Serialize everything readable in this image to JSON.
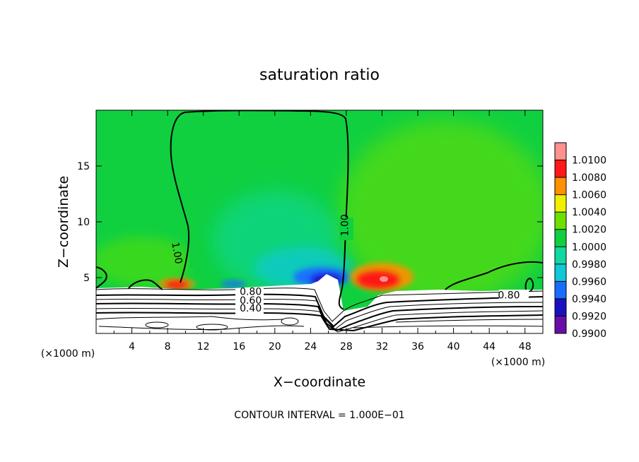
{
  "chart_data": {
    "type": "heatmap",
    "title": "saturation ratio",
    "xlabel": "X−coordinate",
    "ylabel": "Z−coordinate",
    "x_unit": "(×1000 m)",
    "xlim": [
      0,
      50
    ],
    "ylim": [
      0,
      20
    ],
    "x_ticks": [
      4,
      8,
      12,
      16,
      20,
      24,
      28,
      32,
      36,
      40,
      44,
      48
    ],
    "x_tick_labels": [
      "4",
      "8",
      "12",
      "16",
      "20",
      "24",
      "28",
      "32",
      "36",
      "40",
      "44",
      "48"
    ],
    "y_ticks": [
      5,
      10,
      15
    ],
    "y_tick_labels": [
      "5",
      "10",
      "15"
    ],
    "colorbar": {
      "levels": [
        0.99,
        0.992,
        0.994,
        0.996,
        0.998,
        1.0,
        1.002,
        1.004,
        1.006,
        1.008,
        1.01
      ],
      "labels": [
        "0.9900",
        "0.9920",
        "0.9940",
        "0.9960",
        "0.9980",
        "1.0000",
        "1.0020",
        "1.0040",
        "1.0060",
        "1.0080",
        "1.0100"
      ],
      "colors": [
        "#6a0da8",
        "#1a10c0",
        "#1a6cff",
        "#10c8d8",
        "#10d8a0",
        "#10d040",
        "#6ee000",
        "#f0f000",
        "#ff9000",
        "#ff1818",
        "#ff9090"
      ]
    },
    "contour_labels": [
      {
        "text": "1.00",
        "x": 9.0,
        "z": 7.2,
        "angle": 80
      },
      {
        "text": "1.00",
        "x": 27.9,
        "z": 9.7,
        "angle": -90
      },
      {
        "text": "0.80",
        "x": 17.3,
        "z": 3.7,
        "angle": 0
      },
      {
        "text": "0.60",
        "x": 17.3,
        "z": 2.9,
        "angle": 0
      },
      {
        "text": "0.40",
        "x": 17.3,
        "z": 2.2,
        "angle": 0
      },
      {
        "text": "0.80",
        "x": 46.2,
        "z": 3.4,
        "angle": 0
      }
    ],
    "contour_interval_label": "CONTOUR INTERVAL = 1.000E−01"
  }
}
